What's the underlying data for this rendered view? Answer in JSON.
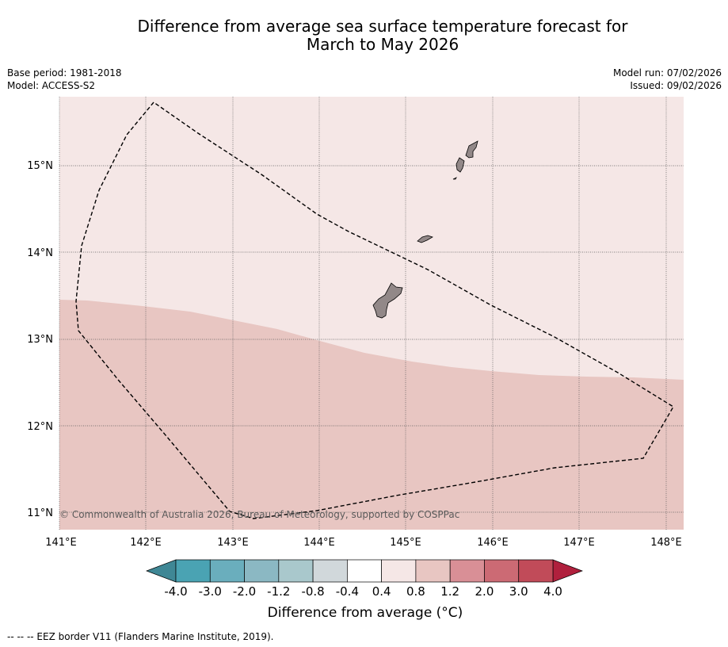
{
  "title": {
    "line1": "Difference from average sea surface temperature forecast for",
    "line2": "March to May 2026"
  },
  "info": {
    "base_period": "Base period: 1981-2018",
    "model": "Model: ACCESS-S2",
    "model_run": "Model run: 07/02/2026",
    "issued": "Issued: 09/02/2026"
  },
  "map": {
    "lon_labels": [
      "141°E",
      "142°E",
      "143°E",
      "144°E",
      "145°E",
      "146°E",
      "147°E",
      "148°E"
    ],
    "lat_labels": [
      "15°N",
      "14°N",
      "13°N",
      "12°N",
      "11°N"
    ],
    "copyright": "© Commonwealth of Australia 2026, Bureau of Meteorology, supported by COSPPac",
    "regions": [
      {
        "name": "0.4 to 0.8 °C",
        "color": "#f5e7e6"
      },
      {
        "name": "0.8 to 1.2 °C",
        "color": "#e8c6c2"
      }
    ],
    "land_color": "#928888"
  },
  "colorbar": {
    "ticks": [
      "-4.0",
      "-3.0",
      "-2.0",
      "-1.2",
      "-0.8",
      "-0.4",
      "0.4",
      "0.8",
      "1.2",
      "2.0",
      "3.0",
      "4.0"
    ],
    "colors": [
      "#4aa3b3",
      "#6aaebd",
      "#8bb8c3",
      "#a9c8cc",
      "#d1d8db",
      "#ffffff",
      "#f5e7e6",
      "#e8c6c2",
      "#d98f96",
      "#cc6a74",
      "#c14b59"
    ],
    "under_color": "#3f8795",
    "over_color": "#b0203d",
    "label": "Difference from average (°C)"
  },
  "footnote": "--  --  -- EEZ border V11 (Flanders Marine Institute, 2019)."
}
